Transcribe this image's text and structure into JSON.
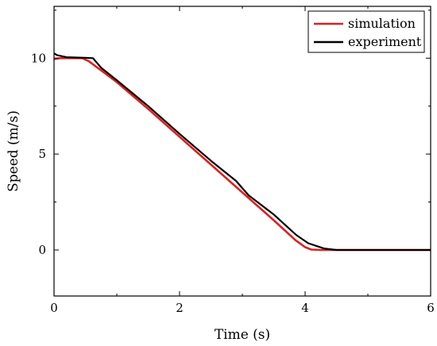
{
  "chart_data": {
    "type": "line",
    "xlabel": "Time (s)",
    "ylabel": "Speed (m/s)",
    "xlim": [
      0,
      6
    ],
    "ylim": [
      -2.4,
      12.7
    ],
    "xticks": [
      0,
      2,
      4,
      6
    ],
    "yticks": [
      0,
      5,
      10
    ],
    "x_minor_step": 1,
    "y_minor_step": 2.5,
    "grid": false,
    "legend": "top-right",
    "series": [
      {
        "name": "simulation",
        "color": "#e01f1f",
        "points": [
          [
            0,
            9.95
          ],
          [
            0.1,
            10.0
          ],
          [
            0.45,
            10.0
          ],
          [
            0.55,
            9.85
          ],
          [
            1,
            8.75
          ],
          [
            1.5,
            7.35
          ],
          [
            2,
            5.9
          ],
          [
            2.5,
            4.45
          ],
          [
            3,
            3.0
          ],
          [
            3.5,
            1.55
          ],
          [
            3.85,
            0.5
          ],
          [
            4.0,
            0.15
          ],
          [
            4.1,
            0.02
          ],
          [
            4.25,
            0.0
          ],
          [
            6,
            0.0
          ]
        ]
      },
      {
        "name": "experiment",
        "color": "#000000",
        "points": [
          [
            0,
            10.25
          ],
          [
            0.05,
            10.15
          ],
          [
            0.2,
            10.05
          ],
          [
            0.5,
            10.02
          ],
          [
            0.62,
            10.0
          ],
          [
            0.75,
            9.5
          ],
          [
            1,
            8.85
          ],
          [
            1.5,
            7.5
          ],
          [
            2,
            6.05
          ],
          [
            2.5,
            4.65
          ],
          [
            2.9,
            3.6
          ],
          [
            3.1,
            2.85
          ],
          [
            3.5,
            1.85
          ],
          [
            3.85,
            0.8
          ],
          [
            4.05,
            0.35
          ],
          [
            4.3,
            0.08
          ],
          [
            4.5,
            0.0
          ],
          [
            6,
            0.0
          ]
        ]
      }
    ]
  }
}
